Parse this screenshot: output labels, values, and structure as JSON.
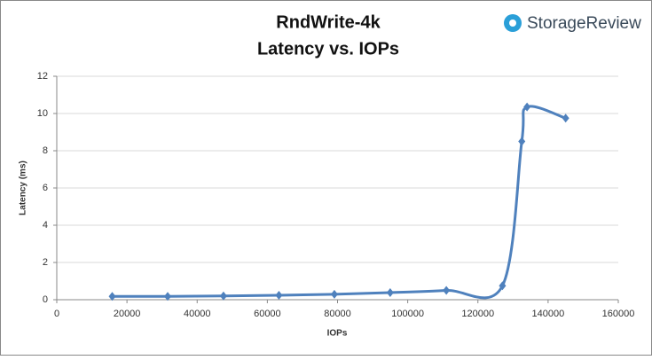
{
  "logo": "StorageReview",
  "chart_data": {
    "type": "scatter",
    "title": "RndWrite-4k",
    "subtitle": "Latency vs. IOPs",
    "x_label": "IOPs",
    "y_label": "Latency (ms)",
    "series": [
      {
        "name": "Latency",
        "color": "#4f81bd",
        "x": [
          15800,
          31600,
          47500,
          63300,
          79100,
          95000,
          111000,
          127000,
          132500,
          134000,
          145000
        ],
        "values": [
          0.18,
          0.18,
          0.2,
          0.24,
          0.29,
          0.38,
          0.5,
          0.75,
          8.5,
          10.35,
          9.75
        ]
      }
    ],
    "smooth": true,
    "grid": true,
    "xlim": [
      0,
      160000
    ],
    "xticks": [
      0,
      20000,
      40000,
      60000,
      80000,
      100000,
      120000,
      140000,
      160000
    ],
    "ylim": [
      0,
      12
    ],
    "yticks": [
      0,
      2,
      4,
      6,
      8,
      10,
      12
    ]
  }
}
